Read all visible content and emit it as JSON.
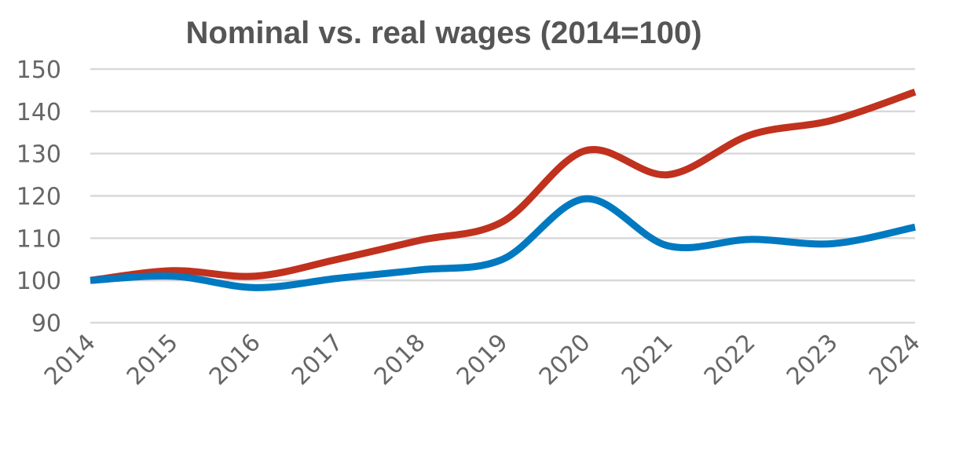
{
  "chart_data": {
    "type": "line",
    "title": "Nominal vs. real  wages (2014=100)",
    "xlabel": "",
    "ylabel": "",
    "categories": [
      "2014",
      "2015",
      "2016",
      "2017",
      "2018",
      "2019",
      "2020",
      "2021",
      "2022",
      "2023",
      "2024"
    ],
    "ylim": [
      90,
      150
    ],
    "yticks": [
      90,
      100,
      110,
      120,
      130,
      140,
      150
    ],
    "grid": true,
    "legend": "none",
    "smooth": true,
    "series": [
      {
        "color": "#c0311e",
        "values": [
          100,
          102.3,
          101,
          105,
          109.5,
          113.9,
          130.7,
          125,
          134.4,
          137.9,
          144.6
        ]
      },
      {
        "color": "#0079c1",
        "values": [
          100,
          101,
          98.3,
          100.5,
          102.5,
          105,
          119.3,
          108.2,
          109.7,
          108.7,
          112.6
        ]
      }
    ]
  }
}
